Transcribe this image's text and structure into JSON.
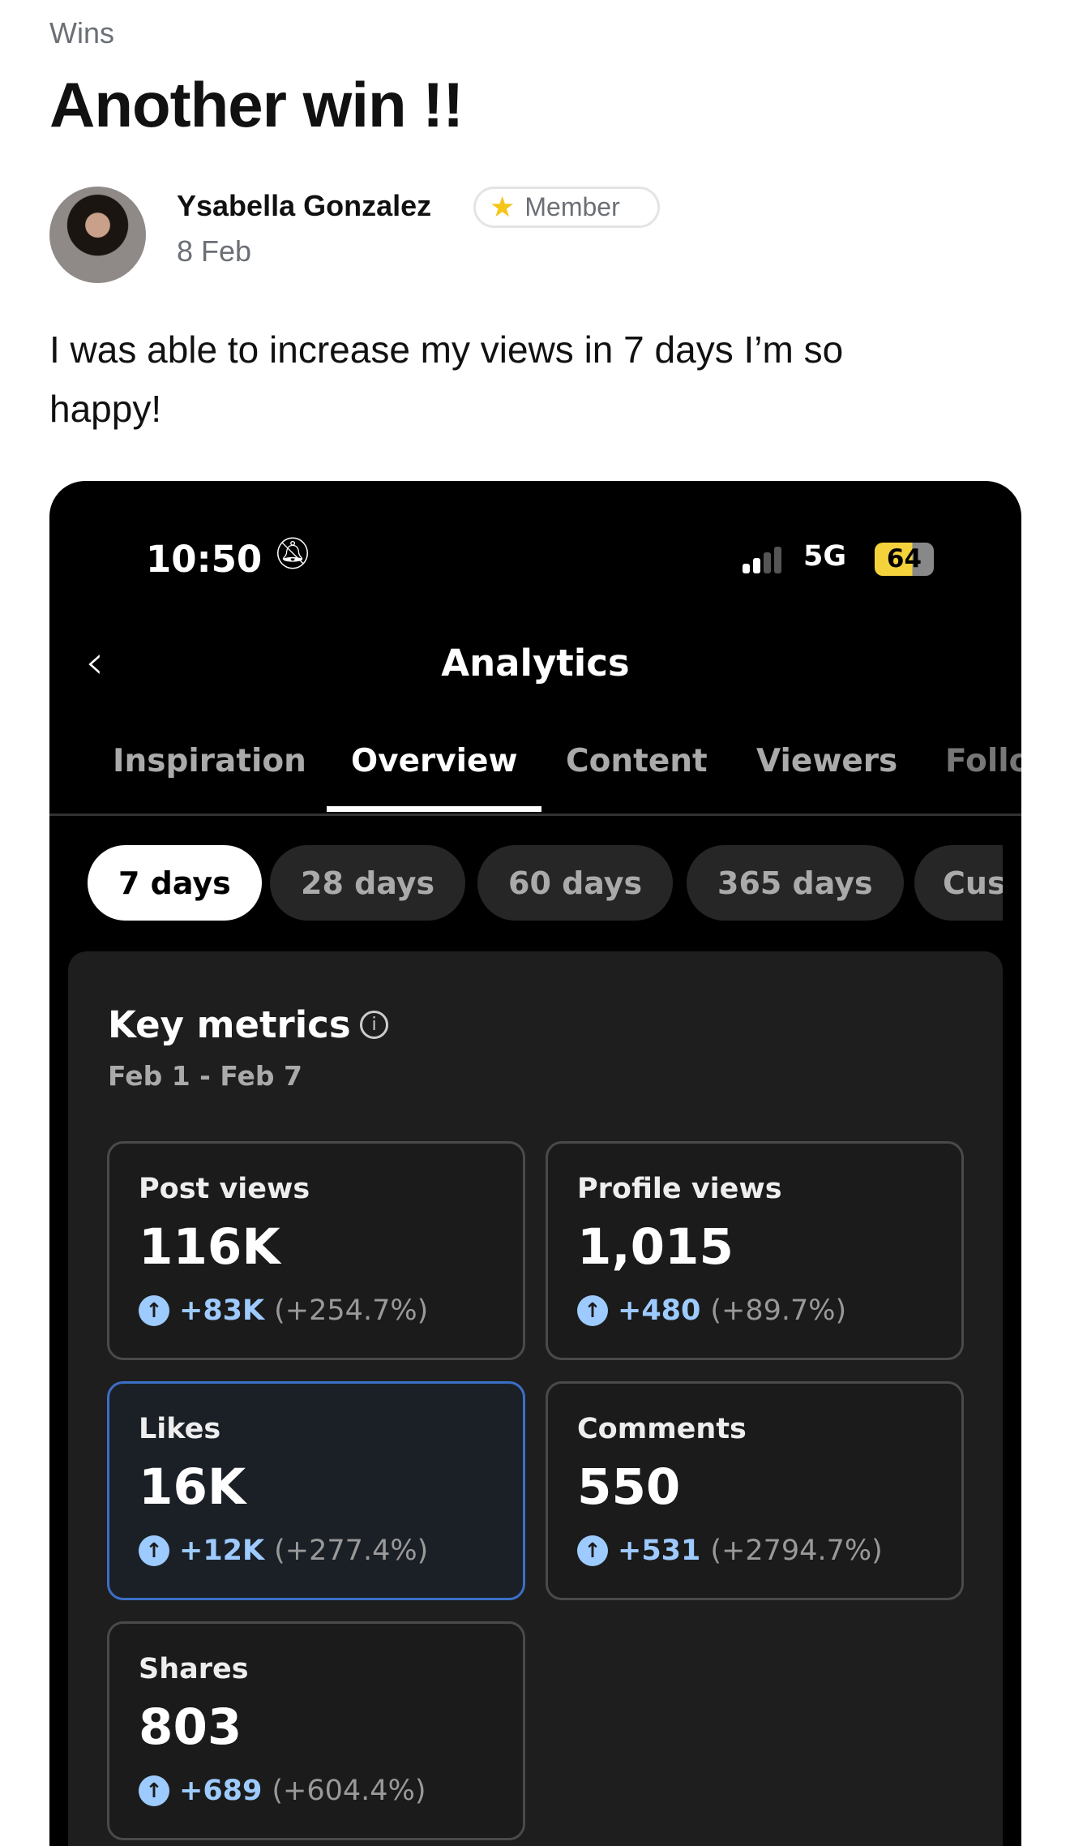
{
  "post": {
    "category": "Wins",
    "title": "Another win !!",
    "author": "Ysabella Gonzalez",
    "badge": "Member",
    "date": "8 Feb",
    "body": "I was able to increase my views in 7 days I’m so happy!"
  },
  "screenshot": {
    "status": {
      "time": "10:50",
      "network": "5G",
      "battery": "64"
    },
    "title": "Analytics",
    "tabs": [
      {
        "label": "Inspiration"
      },
      {
        "label": "Overview",
        "active": true
      },
      {
        "label": "Content"
      },
      {
        "label": "Viewers"
      },
      {
        "label": "Follo"
      }
    ],
    "ranges": [
      {
        "label": "7 days",
        "active": true
      },
      {
        "label": "28 days"
      },
      {
        "label": "60 days"
      },
      {
        "label": "365 days"
      },
      {
        "label": "Cus"
      }
    ],
    "key_metrics": {
      "title": "Key metrics",
      "range": "Feb 1 - Feb 7"
    },
    "metrics": [
      {
        "label": "Post views",
        "value": "116K",
        "delta": "+83K",
        "pct": "(+254.7%)"
      },
      {
        "label": "Profile views",
        "value": "1,015",
        "delta": "+480",
        "pct": "(+89.7%)"
      },
      {
        "label": "Likes",
        "value": "16K",
        "delta": "+12K",
        "pct": "(+277.4%)",
        "selected": true
      },
      {
        "label": "Comments",
        "value": "550",
        "delta": "+531",
        "pct": "(+2794.7%)"
      },
      {
        "label": "Shares",
        "value": "803",
        "delta": "+689",
        "pct": "(+604.4%)"
      }
    ],
    "colors": {
      "accent": "#9ecbff",
      "selected_border": "#3b6fc6",
      "battery": "#f4d23c"
    }
  }
}
